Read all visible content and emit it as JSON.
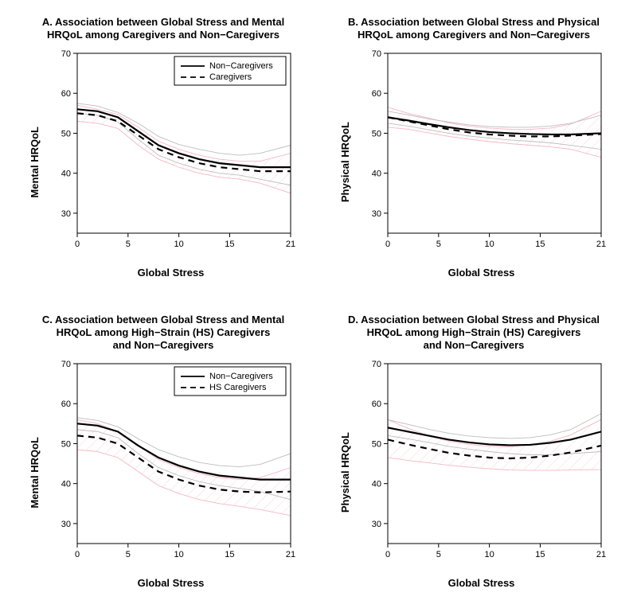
{
  "figure": {
    "background_color": "#ffffff",
    "band_color_1": "#bdbdbd",
    "band_color_2": "#f4b7c6",
    "line_color": "#000000",
    "font_family": "Arial",
    "title_fontsize": 13,
    "axis_label_fontsize": 13,
    "tick_fontsize": 11,
    "legend_fontsize": 11
  },
  "panels": [
    {
      "key": "A",
      "title_l1": "A. Association between Global Stress and Mental",
      "title_l2": "HRQoL among Caregivers and Non−Caregivers",
      "xlabel": "Global Stress",
      "ylabel": "Mental HRQoL",
      "xlim": [
        0,
        21
      ],
      "ylim": [
        25,
        70
      ],
      "xticks": [
        0,
        5,
        10,
        15,
        21
      ],
      "yticks": [
        30,
        40,
        50,
        60,
        70
      ],
      "legend": {
        "position": "top-right",
        "items": [
          "Non−Caregivers",
          "Caregivers"
        ]
      },
      "series1": {
        "label": "Non−Caregivers",
        "dash": false,
        "x": [
          0,
          2,
          4,
          6,
          8,
          10,
          12,
          14,
          16,
          18,
          21
        ],
        "y": [
          56,
          55.5,
          54,
          50.5,
          47,
          45,
          43.5,
          42.5,
          42,
          41.5,
          41.5
        ],
        "upper": [
          57.5,
          56.8,
          55.2,
          52.5,
          49.2,
          47.2,
          46,
          45,
          44.5,
          45,
          47
        ],
        "lower": [
          55,
          54.5,
          52.8,
          48.5,
          44.5,
          42.5,
          41,
          40,
          39.5,
          38.5,
          37
        ]
      },
      "series2": {
        "label": "Caregivers",
        "dash": true,
        "x": [
          0,
          2,
          4,
          6,
          8,
          10,
          12,
          14,
          16,
          18,
          21
        ],
        "y": [
          55,
          54.5,
          53,
          49.5,
          46,
          44,
          42.5,
          41.5,
          41,
          40.5,
          40.5
        ],
        "upper": [
          57,
          56,
          54.7,
          51.5,
          48,
          46,
          44.5,
          43.5,
          43,
          43,
          45
        ],
        "lower": [
          53,
          52.5,
          51.2,
          47,
          43.5,
          41.5,
          40,
          39,
          38.5,
          37.5,
          35
        ]
      }
    },
    {
      "key": "B",
      "title_l1": "B. Association between Global Stress and Physical",
      "title_l2": "HRQoL among Caregivers and Non−Caregivers",
      "xlabel": "Global Stress",
      "ylabel": "Physical HRQoL",
      "xlim": [
        0,
        21
      ],
      "ylim": [
        25,
        70
      ],
      "xticks": [
        0,
        5,
        10,
        15,
        21
      ],
      "yticks": [
        30,
        40,
        50,
        60,
        70
      ],
      "legend": null,
      "series1": {
        "label": "Non−Caregivers",
        "dash": false,
        "x": [
          0,
          2,
          4,
          6,
          8,
          10,
          12,
          14,
          16,
          18,
          21
        ],
        "y": [
          54,
          53.2,
          52.3,
          51.5,
          50.8,
          50.3,
          50,
          49.8,
          49.7,
          49.7,
          50
        ],
        "upper": [
          55.5,
          54.6,
          53.6,
          52.8,
          52.1,
          51.7,
          51.5,
          51.5,
          51.8,
          52.5,
          54.5
        ],
        "lower": [
          52.5,
          51.8,
          50.9,
          50,
          49.3,
          48.8,
          48.3,
          48,
          47.6,
          47,
          46
        ]
      },
      "series2": {
        "label": "Caregivers",
        "dash": true,
        "x": [
          0,
          2,
          4,
          6,
          8,
          10,
          12,
          14,
          16,
          18,
          21
        ],
        "y": [
          54,
          53,
          52,
          51,
          50.2,
          49.7,
          49.4,
          49.2,
          49.2,
          49.4,
          49.8
        ],
        "upper": [
          56.5,
          55,
          53.8,
          52.6,
          51.8,
          51.3,
          51,
          51,
          51.3,
          52.3,
          55.5
        ],
        "lower": [
          51.5,
          51,
          50.1,
          49.2,
          48.5,
          47.9,
          47.4,
          47,
          46.6,
          46,
          44
        ]
      }
    },
    {
      "key": "C",
      "title_l1": "C. Association between Global Stress and Mental",
      "title_l2": "HRQoL among High−Strain (HS) Caregivers",
      "title_l3": "and Non−Caregivers",
      "xlabel": "Global Stress",
      "ylabel": "Mental HRQoL",
      "xlim": [
        0,
        21
      ],
      "ylim": [
        25,
        70
      ],
      "xticks": [
        0,
        5,
        10,
        15,
        21
      ],
      "yticks": [
        30,
        40,
        50,
        60,
        70
      ],
      "legend": {
        "position": "top-right",
        "items": [
          "Non−Caregivers",
          "HS Caregivers"
        ]
      },
      "series1": {
        "label": "Non−Caregivers",
        "dash": false,
        "x": [
          0,
          2,
          4,
          6,
          8,
          10,
          12,
          14,
          16,
          18,
          21
        ],
        "y": [
          55,
          54.5,
          53,
          49.5,
          46.5,
          44.5,
          43,
          42,
          41.5,
          41,
          41
        ],
        "upper": [
          56.5,
          55.8,
          54.2,
          51.2,
          48.5,
          46.7,
          45.3,
          44.5,
          44.2,
          44.8,
          47.5
        ],
        "lower": [
          53.5,
          53,
          51.5,
          47.5,
          44,
          42,
          40.5,
          39.5,
          38.8,
          38,
          36
        ]
      },
      "series2": {
        "label": "HS Caregivers",
        "dash": true,
        "x": [
          0,
          2,
          4,
          6,
          8,
          10,
          12,
          14,
          16,
          18,
          21
        ],
        "y": [
          52,
          51.5,
          50,
          46.5,
          43,
          41,
          39.5,
          38.5,
          38,
          37.8,
          38
        ],
        "upper": [
          56,
          55,
          53,
          49.5,
          46,
          44,
          42.5,
          41.5,
          41,
          41.5,
          44
        ],
        "lower": [
          48.5,
          48,
          46.5,
          43,
          39.5,
          37.5,
          36,
          35,
          34.3,
          33.5,
          32
        ]
      }
    },
    {
      "key": "D",
      "title_l1": "D. Association between Global Stress and Physical",
      "title_l2": "HRQoL among High−Strain (HS) Caregivers",
      "title_l3": "and Non−Caregivers",
      "xlabel": "Global Stress",
      "ylabel": "Physical HRQoL",
      "xlim": [
        0,
        21
      ],
      "ylim": [
        25,
        70
      ],
      "xticks": [
        0,
        5,
        10,
        15,
        21
      ],
      "yticks": [
        30,
        40,
        50,
        60,
        70
      ],
      "legend": null,
      "series1": {
        "label": "Non−Caregivers",
        "dash": false,
        "x": [
          0,
          2,
          4,
          6,
          8,
          10,
          12,
          14,
          16,
          18,
          21
        ],
        "y": [
          54,
          53,
          52,
          51,
          50.3,
          49.8,
          49.6,
          49.7,
          50.2,
          51,
          53
        ],
        "upper": [
          56,
          54.8,
          53.6,
          52.6,
          51.9,
          51.5,
          51.3,
          51.5,
          52.2,
          53.5,
          57.5
        ],
        "lower": [
          52,
          51.2,
          50.3,
          49.3,
          48.6,
          48,
          47.5,
          47.2,
          47.2,
          47.5,
          48
        ]
      },
      "series2": {
        "label": "HS Caregivers",
        "dash": true,
        "x": [
          0,
          2,
          4,
          6,
          8,
          10,
          12,
          14,
          16,
          18,
          21
        ],
        "y": [
          51,
          49.8,
          48.7,
          47.7,
          47,
          46.5,
          46.3,
          46.5,
          47,
          47.8,
          49.5
        ],
        "upper": [
          56,
          53.8,
          52,
          50.6,
          49.8,
          49.3,
          49.2,
          49.7,
          50.6,
          52.2,
          56
        ],
        "lower": [
          46.5,
          45.8,
          45.2,
          44.6,
          44.1,
          43.7,
          43.4,
          43.3,
          43.3,
          43.4,
          43.5
        ]
      }
    }
  ]
}
